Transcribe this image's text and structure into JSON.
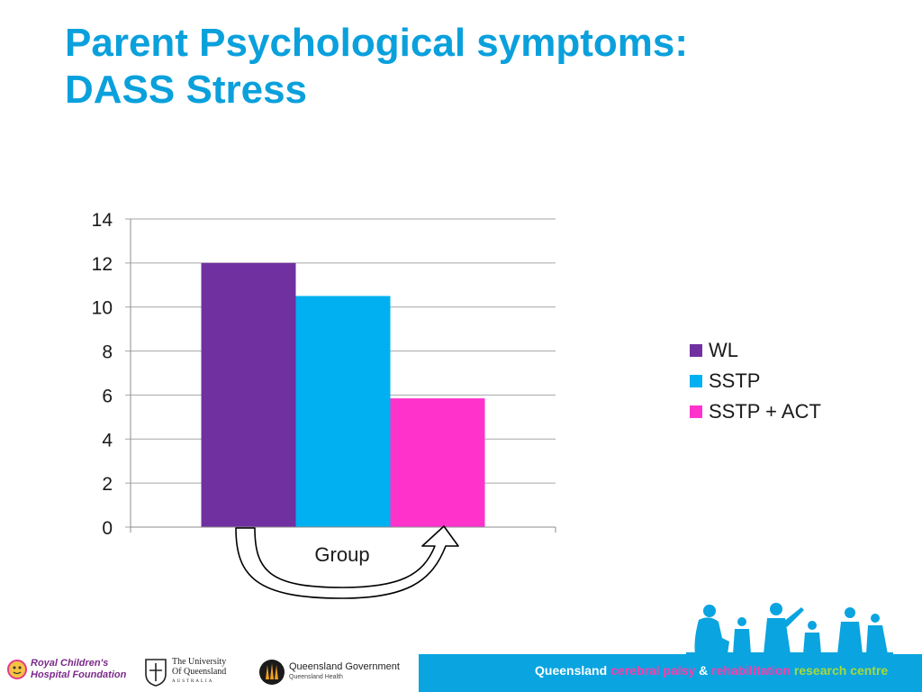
{
  "title": {
    "line1": "Parent Psychological symptoms:",
    "line2": "DASS Stress"
  },
  "chart_data": {
    "type": "bar",
    "categories": [
      "Group"
    ],
    "series": [
      {
        "name": "WL",
        "values": [
          12
        ],
        "color": "#7030a0"
      },
      {
        "name": "SSTP",
        "values": [
          10.5
        ],
        "color": "#00b0f0"
      },
      {
        "name": "SSTP + ACT",
        "values": [
          5.85
        ],
        "color": "#ff33cc"
      }
    ],
    "xlabel": "Group",
    "ylabel": "",
    "ylim": [
      0,
      14
    ],
    "yticks": [
      "0",
      "2",
      "4",
      "6",
      "8",
      "10",
      "12",
      "14"
    ],
    "grid": true,
    "legend_position": "right",
    "annotation": "curved arrow from WL bar to SSTP + ACT bar"
  },
  "footer": {
    "logo_rch_line1": "Royal Children's",
    "logo_rch_line2": "Hospital Foundation",
    "logo_uq_line1": "The University",
    "logo_uq_line2": "Of Queensland",
    "logo_uq_line3": "AUSTRALIA",
    "logo_qg_line1": "Queensland Government",
    "logo_qg_line2": "Queensland Health",
    "text_1": "Queensland",
    "text_2": "cerebral palsy",
    "text_3": "&",
    "text_4": "rehabilitation",
    "text_5": "research centre"
  }
}
